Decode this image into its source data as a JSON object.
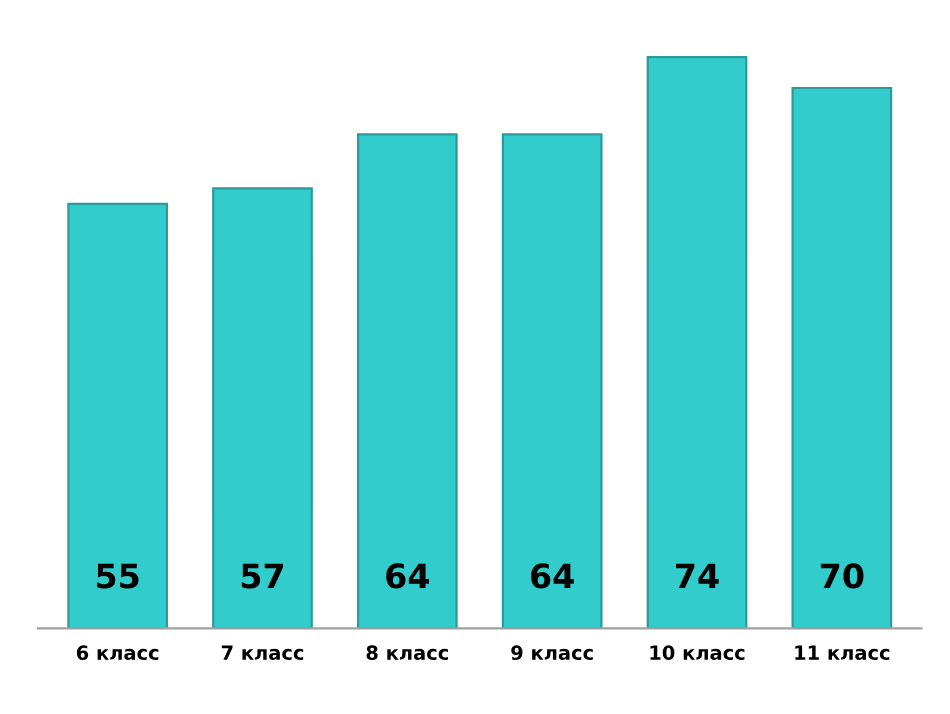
{
  "chart_data": {
    "type": "bar",
    "categories": [
      "6 класс",
      "7 класс",
      "8 класс",
      "9 класс",
      "10 класс",
      "11 класс"
    ],
    "values": [
      55,
      57,
      64,
      64,
      74,
      70
    ],
    "color": "#33cccc",
    "data_labels": true,
    "grid": false
  }
}
